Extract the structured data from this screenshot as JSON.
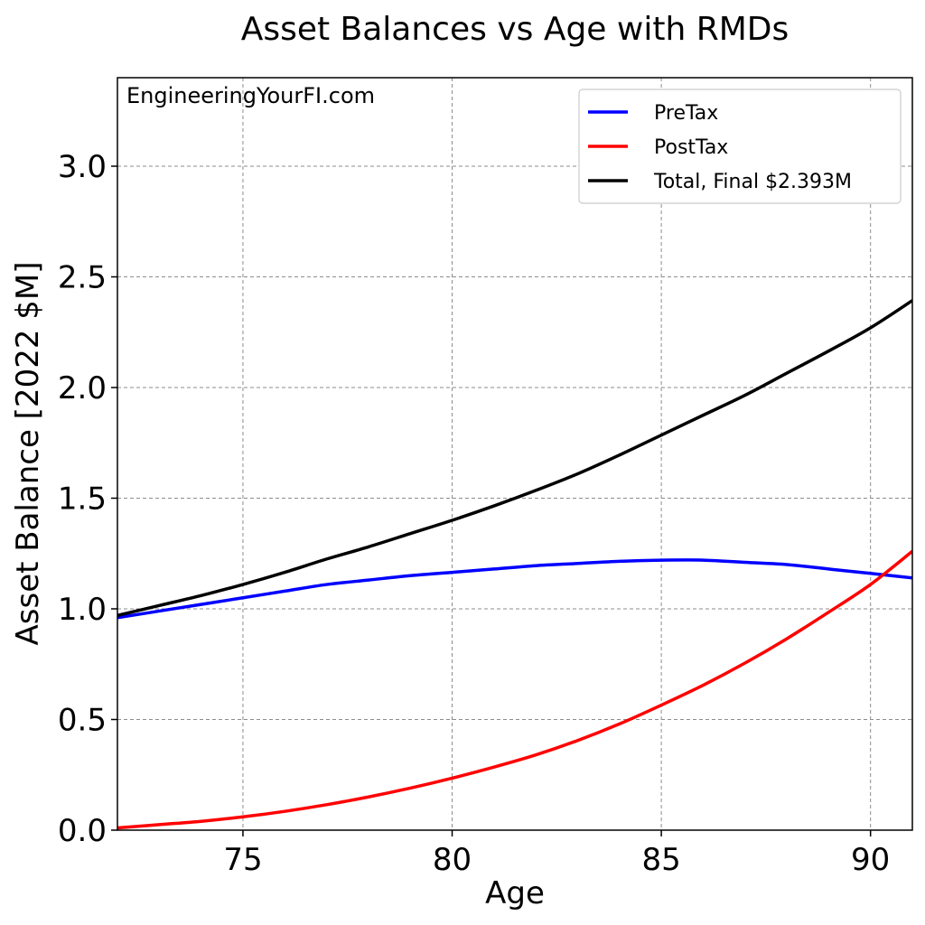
{
  "chart_data": {
    "type": "line",
    "title": "Asset Balances vs Age with RMDs",
    "xlabel": "Age",
    "ylabel": "Asset Balance [2022 $M]",
    "watermark": "EngineeringYourFI.com",
    "xlim": [
      72,
      91
    ],
    "ylim": [
      0,
      3.4
    ],
    "xticks": [
      75,
      80,
      85,
      90
    ],
    "yticks": [
      0.0,
      0.5,
      1.0,
      1.5,
      2.0,
      2.5,
      3.0
    ],
    "xtick_labels": [
      "75",
      "80",
      "85",
      "90"
    ],
    "ytick_labels": [
      "0.0",
      "0.5",
      "1.0",
      "1.5",
      "2.0",
      "2.5",
      "3.0"
    ],
    "grid": true,
    "legend_position": "top-right",
    "x": [
      72,
      73,
      74,
      75,
      76,
      77,
      78,
      79,
      80,
      81,
      82,
      83,
      84,
      85,
      86,
      87,
      88,
      89,
      90,
      91
    ],
    "series": [
      {
        "name": "PreTax",
        "color": "#0000ff",
        "values": [
          0.96,
          0.99,
          1.02,
          1.05,
          1.08,
          1.11,
          1.13,
          1.15,
          1.165,
          1.18,
          1.195,
          1.205,
          1.215,
          1.22,
          1.22,
          1.21,
          1.2,
          1.18,
          1.16,
          1.14
        ]
      },
      {
        "name": "PostTax",
        "color": "#ff0000",
        "values": [
          0.01,
          0.025,
          0.04,
          0.06,
          0.085,
          0.115,
          0.15,
          0.19,
          0.235,
          0.285,
          0.34,
          0.405,
          0.48,
          0.565,
          0.655,
          0.755,
          0.865,
          0.985,
          1.11,
          1.26
        ]
      },
      {
        "name": "Total, Final $2.393M",
        "color": "#000000",
        "values": [
          0.97,
          1.015,
          1.06,
          1.11,
          1.165,
          1.225,
          1.28,
          1.34,
          1.4,
          1.465,
          1.535,
          1.61,
          1.695,
          1.785,
          1.875,
          1.965,
          2.065,
          2.165,
          2.27,
          2.393
        ]
      }
    ]
  }
}
